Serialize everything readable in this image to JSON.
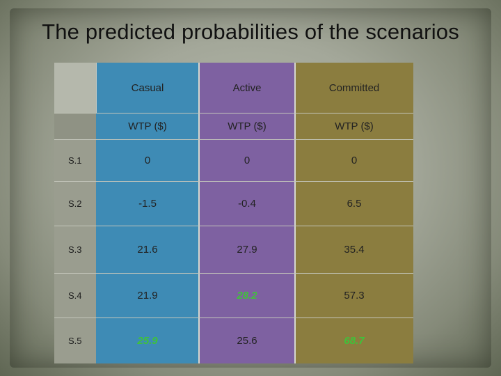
{
  "title": "The predicted probabilities of the scenarios",
  "columns": [
    {
      "name": "Casual",
      "sub": "WTP ($)",
      "color": "#3e8bb5"
    },
    {
      "name": "Active",
      "sub": "WTP ($)",
      "color": "#7e61a1"
    },
    {
      "name": "Committed",
      "sub": "WTP ($)",
      "color": "#8b7d3f"
    }
  ],
  "rows": [
    {
      "label": "S.1",
      "values": [
        "0",
        "0",
        "0"
      ],
      "highlight": [
        false,
        false,
        false
      ]
    },
    {
      "label": "S.2",
      "values": [
        "-1.5",
        "-0.4",
        "6.5"
      ],
      "highlight": [
        false,
        false,
        false
      ]
    },
    {
      "label": "S.3",
      "values": [
        "21.6",
        "27.9",
        "35.4"
      ],
      "highlight": [
        false,
        false,
        false
      ]
    },
    {
      "label": "S.4",
      "values": [
        "21.9",
        "28.2",
        "57.3"
      ],
      "highlight": [
        false,
        true,
        false
      ]
    },
    {
      "label": "S.5",
      "values": [
        "25.9",
        "25.6",
        "68.7"
      ],
      "highlight": [
        true,
        false,
        true
      ]
    }
  ],
  "highlight_color": "#3fc23a"
}
